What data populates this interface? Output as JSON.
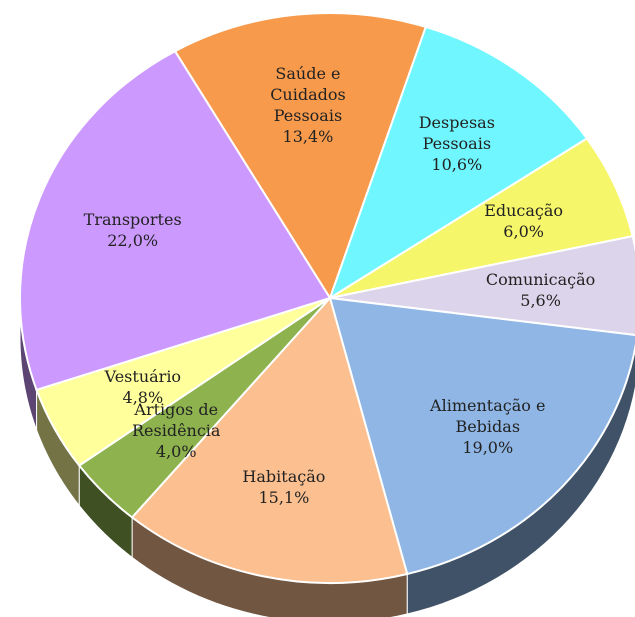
{
  "chart_data": {
    "type": "pie",
    "categories": [
      "Saúde e Cuidados Pessoais",
      "Despesas Pessoais",
      "Educação",
      "Comunicação",
      "Alimentação e Bebidas",
      "Habitação",
      "Artigos de Residência",
      "Vestuário",
      "Transportes"
    ],
    "values": [
      13.4,
      10.6,
      6.0,
      5.6,
      19.0,
      15.1,
      4.0,
      4.8,
      22.0
    ],
    "value_labels": [
      "13,4%",
      "10,6%",
      "6,0%",
      "5,6%",
      "19,0%",
      "15,1%",
      "4,0%",
      "4,8%",
      "22,0%"
    ],
    "colors": [
      "#f79a4c",
      "#6ff6ff",
      "#f6f66a",
      "#dcd4ea",
      "#8fb6e4",
      "#fbbf90",
      "#8db24e",
      "#ffff9c",
      "#cc99ff"
    ]
  }
}
